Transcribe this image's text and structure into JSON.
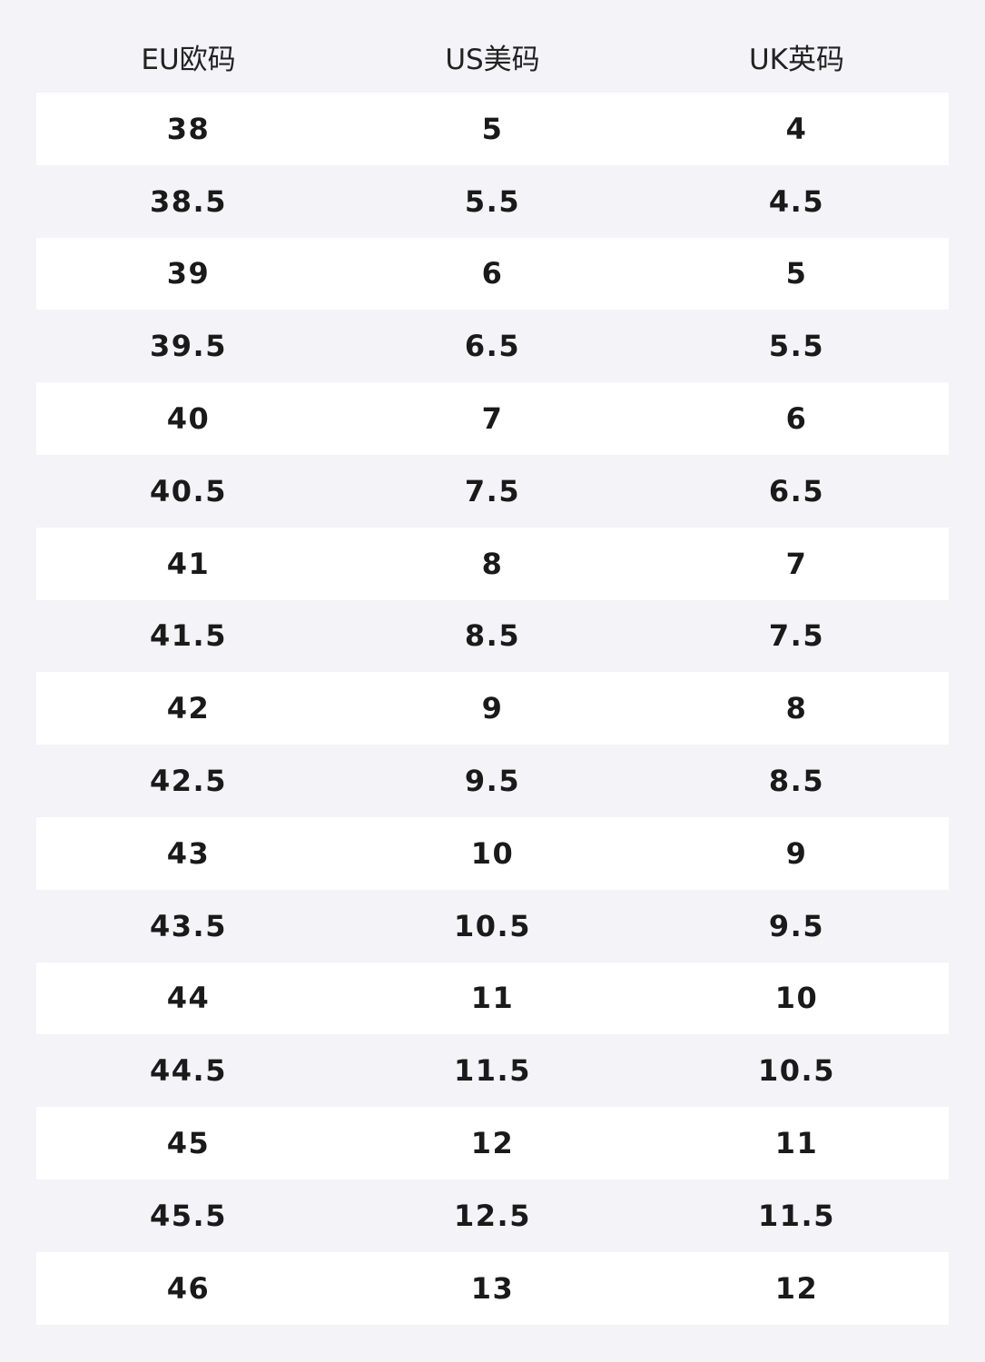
{
  "table": {
    "header": [
      "EU欧码",
      "US美码",
      "UK英码"
    ],
    "rows": [
      [
        "38",
        "5",
        "4"
      ],
      [
        "38.5",
        "5.5",
        "4.5"
      ],
      [
        "39",
        "6",
        "5"
      ],
      [
        "39.5",
        "6.5",
        "5.5"
      ],
      [
        "40",
        "7",
        "6"
      ],
      [
        "40.5",
        "7.5",
        "6.5"
      ],
      [
        "41",
        "8",
        "7"
      ],
      [
        "41.5",
        "8.5",
        "7.5"
      ],
      [
        "42",
        "9",
        "8"
      ],
      [
        "42.5",
        "9.5",
        "8.5"
      ],
      [
        "43",
        "10",
        "9"
      ],
      [
        "43.5",
        "10.5",
        "9.5"
      ],
      [
        "44",
        "11",
        "10"
      ],
      [
        "44.5",
        "11.5",
        "10.5"
      ],
      [
        "45",
        "12",
        "11"
      ],
      [
        "45.5",
        "12.5",
        "11.5"
      ],
      [
        "46",
        "13",
        "12"
      ]
    ]
  }
}
